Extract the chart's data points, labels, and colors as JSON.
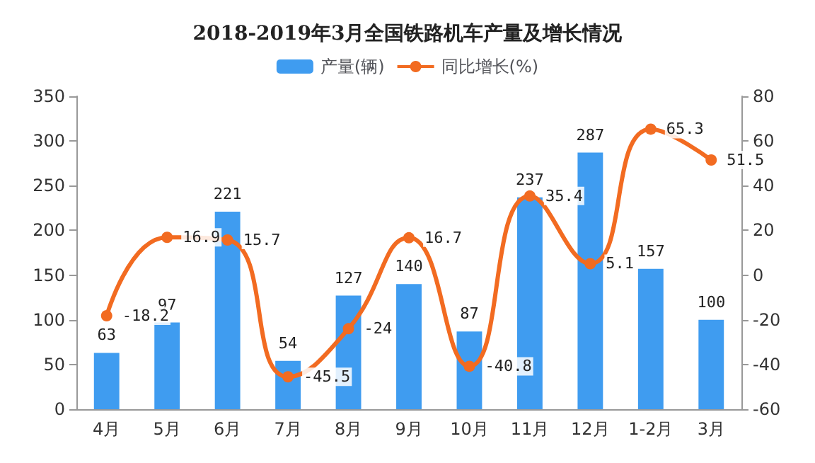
{
  "chart_data": {
    "type": "bar",
    "title": "2018-2019年3月全国铁路机车产量及增长情况",
    "categories": [
      "4月",
      "5月",
      "6月",
      "7月",
      "8月",
      "9月",
      "10月",
      "11月",
      "12月",
      "1-2月",
      "3月"
    ],
    "series": [
      {
        "name": "产量(辆)",
        "color": "#3f9cf0",
        "values": [
          63,
          97,
          221,
          54,
          127,
          140,
          87,
          237,
          287,
          157,
          100
        ]
      },
      {
        "name": "同比增长(%)",
        "type": "line",
        "axis": "y2",
        "color": "#f26b21",
        "marker": "circle",
        "values": [
          -18.2,
          16.9,
          15.7,
          -45.5,
          -24,
          16.7,
          -40.8,
          35.4,
          5.1,
          65.3,
          51.5
        ]
      }
    ],
    "ylim": [
      0,
      350
    ],
    "yticks": [
      0,
      50,
      100,
      150,
      200,
      250,
      300,
      350
    ],
    "y2lim": [
      -60,
      80
    ],
    "y2ticks": [
      -60,
      -40,
      -20,
      0,
      20,
      40,
      60,
      80
    ],
    "data_labels": true,
    "legend": "top",
    "grid": false
  }
}
